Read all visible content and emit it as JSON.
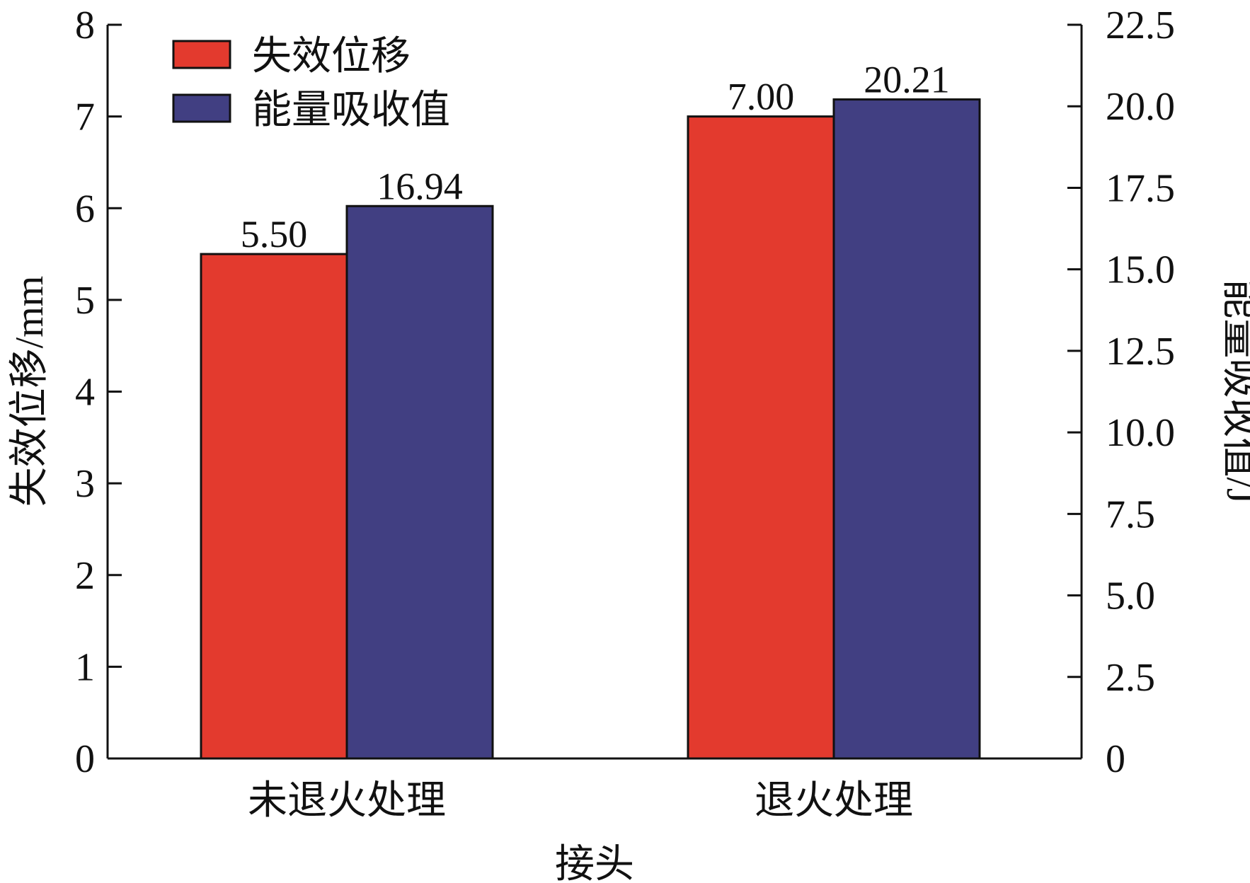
{
  "chart_data": {
    "type": "bar",
    "categories": [
      "未退火处理",
      "退火处理"
    ],
    "xlabel": "接头",
    "series": [
      {
        "name": "失效位移",
        "axis": "left",
        "values": [
          5.5,
          7.0
        ],
        "labels": [
          "5.50",
          "7.00"
        ],
        "color": "#e33a2e"
      },
      {
        "name": "能量吸收值",
        "axis": "right",
        "values": [
          16.94,
          20.21
        ],
        "labels": [
          "16.94",
          "20.21"
        ],
        "color": "#413f82"
      }
    ],
    "y_left": {
      "label": "失效位移/mm",
      "ylim": [
        0,
        8
      ],
      "ticks": [
        0,
        1,
        2,
        3,
        4,
        5,
        6,
        7,
        8
      ],
      "tick_labels": [
        "0",
        "1",
        "2",
        "3",
        "4",
        "5",
        "6",
        "7",
        "8"
      ]
    },
    "y_right": {
      "label": "能量吸收值/J",
      "ylim": [
        0,
        22.5
      ],
      "ticks": [
        0,
        2.5,
        5,
        7.5,
        10,
        12.5,
        15,
        17.5,
        20,
        22.5
      ],
      "tick_labels": [
        "0",
        "2.5",
        "5.0",
        "7.5",
        "10.0",
        "12.5",
        "15.0",
        "17.5",
        "20.0",
        "22.5"
      ]
    },
    "legend": {
      "position": "top-left"
    },
    "grid": false
  }
}
